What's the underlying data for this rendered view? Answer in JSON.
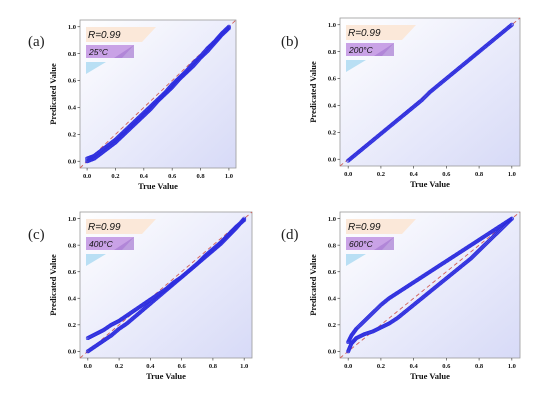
{
  "colors": {
    "point": "#2f2fe0",
    "point_dark": "#1d1d9c",
    "diagonal": "#d0605a",
    "plot_tint": "#d7daf7",
    "badge_purple": "#c9a2e6",
    "badge_purple_dark": "#a77bd1",
    "badge_blue": "#b9dff4",
    "badge_peach": "#fbe8d9"
  },
  "chart_data": [
    {
      "id": "a",
      "panel_label": "(a)",
      "type": "scatter",
      "r_text": "R=0.99",
      "temp_text": "25°C",
      "xlabel": "True Value",
      "ylabel": "Predicated Value",
      "xlim": [
        -0.05,
        1.05
      ],
      "ylim": [
        -0.05,
        1.05
      ],
      "xticks": [
        "0.0",
        "0.2",
        "0.4",
        "0.6",
        "0.8",
        "1.0"
      ],
      "yticks": [
        "0.0",
        "0.2",
        "0.4",
        "0.6",
        "0.8",
        "1.0"
      ],
      "series": [
        {
          "x": [
            0.0,
            0.05,
            0.1,
            0.15,
            0.2,
            0.25,
            0.3,
            0.35,
            0.4,
            0.45,
            0.5,
            0.55,
            0.6,
            0.65,
            0.7,
            0.75,
            0.8,
            0.85,
            0.9,
            0.95,
            1.0
          ],
          "y": [
            0.02,
            0.04,
            0.08,
            0.12,
            0.16,
            0.21,
            0.26,
            0.31,
            0.36,
            0.41,
            0.46,
            0.51,
            0.57,
            0.62,
            0.67,
            0.73,
            0.78,
            0.84,
            0.89,
            0.95,
            1.0
          ]
        },
        {
          "x": [
            0.0,
            0.05,
            0.1,
            0.15,
            0.2,
            0.25,
            0.3,
            0.35,
            0.4,
            0.45,
            0.5,
            0.55,
            0.6,
            0.65,
            0.7,
            0.75,
            0.8,
            0.85,
            0.9,
            0.95,
            1.0
          ],
          "y": [
            0.0,
            0.02,
            0.06,
            0.1,
            0.14,
            0.19,
            0.24,
            0.29,
            0.34,
            0.39,
            0.45,
            0.5,
            0.55,
            0.61,
            0.66,
            0.71,
            0.77,
            0.82,
            0.88,
            0.94,
            0.99
          ]
        }
      ]
    },
    {
      "id": "b",
      "panel_label": "(b)",
      "type": "scatter",
      "r_text": "R=0.99",
      "temp_text": "200°C",
      "xlabel": "True Value",
      "ylabel": "Predicated Value",
      "xlim": [
        -0.05,
        1.05
      ],
      "ylim": [
        -0.05,
        1.05
      ],
      "xticks": [
        "0.0",
        "0.2",
        "0.4",
        "0.6",
        "0.8",
        "1.0"
      ],
      "yticks": [
        "0.0",
        "0.2",
        "0.4",
        "0.6",
        "0.8",
        "1.0"
      ],
      "series": [
        {
          "x": [
            0.0,
            0.05,
            0.1,
            0.15,
            0.2,
            0.25,
            0.3,
            0.35,
            0.4,
            0.45,
            0.5,
            0.55,
            0.6,
            0.65,
            0.7,
            0.75,
            0.8,
            0.85,
            0.9,
            0.95,
            1.0
          ],
          "y": [
            -0.01,
            0.04,
            0.09,
            0.14,
            0.19,
            0.24,
            0.29,
            0.34,
            0.39,
            0.44,
            0.5,
            0.55,
            0.6,
            0.65,
            0.7,
            0.75,
            0.8,
            0.85,
            0.9,
            0.95,
            1.0
          ]
        }
      ]
    },
    {
      "id": "c",
      "panel_label": "(c)",
      "type": "scatter",
      "r_text": "R=0.99",
      "temp_text": "400°C",
      "xlabel": "True Value",
      "ylabel": "Predicated Value",
      "xlim": [
        -0.05,
        1.05
      ],
      "ylim": [
        -0.05,
        1.05
      ],
      "xticks": [
        "0.0",
        "0.2",
        "0.4",
        "0.6",
        "0.8",
        "1.0"
      ],
      "yticks": [
        "0.0",
        "0.2",
        "0.4",
        "0.6",
        "0.8",
        "1.0"
      ],
      "series": [
        {
          "x": [
            0.0,
            0.05,
            0.1,
            0.15,
            0.2,
            0.25,
            0.3,
            0.35,
            0.4,
            0.45,
            0.5,
            0.55,
            0.6,
            0.65,
            0.7,
            0.75,
            0.8,
            0.85,
            0.9,
            0.95,
            1.0
          ],
          "y": [
            0.1,
            0.13,
            0.16,
            0.2,
            0.23,
            0.27,
            0.31,
            0.35,
            0.39,
            0.43,
            0.47,
            0.52,
            0.56,
            0.61,
            0.66,
            0.71,
            0.76,
            0.81,
            0.87,
            0.93,
            1.0
          ]
        },
        {
          "x": [
            0.0,
            0.05,
            0.1,
            0.15,
            0.2,
            0.25,
            0.3,
            0.35,
            0.4,
            0.45,
            0.5,
            0.55,
            0.6,
            0.65,
            0.7,
            0.75,
            0.8,
            0.85,
            0.9,
            0.95,
            1.0
          ],
          "y": [
            0.0,
            0.04,
            0.08,
            0.12,
            0.17,
            0.21,
            0.26,
            0.31,
            0.36,
            0.41,
            0.46,
            0.51,
            0.56,
            0.61,
            0.66,
            0.72,
            0.77,
            0.82,
            0.88,
            0.94,
            0.99
          ]
        }
      ]
    },
    {
      "id": "d",
      "panel_label": "(d)",
      "type": "scatter",
      "r_text": "R=0.99",
      "temp_text": "600°C",
      "xlabel": "True Value",
      "ylabel": "Predicated Value",
      "xlim": [
        -0.05,
        1.05
      ],
      "ylim": [
        -0.05,
        1.05
      ],
      "xticks": [
        "0.0",
        "0.2",
        "0.4",
        "0.6",
        "0.8",
        "1.0"
      ],
      "yticks": [
        "0.0",
        "0.2",
        "0.4",
        "0.6",
        "0.8",
        "1.0"
      ],
      "series": [
        {
          "x": [
            0.0,
            0.02,
            0.05,
            0.1,
            0.15,
            0.2,
            0.25,
            0.3,
            0.35,
            0.4,
            0.45,
            0.5,
            0.55,
            0.6,
            0.65,
            0.7,
            0.75,
            0.8,
            0.85,
            0.9,
            0.95,
            1.0
          ],
          "y": [
            0.07,
            0.12,
            0.17,
            0.23,
            0.29,
            0.35,
            0.4,
            0.44,
            0.48,
            0.52,
            0.56,
            0.6,
            0.64,
            0.68,
            0.72,
            0.76,
            0.8,
            0.84,
            0.88,
            0.92,
            0.96,
            1.0
          ]
        },
        {
          "x": [
            0.0,
            0.02,
            0.05,
            0.1,
            0.15,
            0.2,
            0.25,
            0.3,
            0.35,
            0.4,
            0.45,
            0.5,
            0.55,
            0.6,
            0.65,
            0.7,
            0.75,
            0.8,
            0.85,
            0.9,
            0.95,
            1.0
          ],
          "y": [
            0.0,
            0.06,
            0.1,
            0.13,
            0.15,
            0.18,
            0.21,
            0.25,
            0.3,
            0.35,
            0.4,
            0.45,
            0.5,
            0.55,
            0.6,
            0.65,
            0.7,
            0.76,
            0.82,
            0.88,
            0.94,
            1.0
          ]
        }
      ]
    }
  ]
}
